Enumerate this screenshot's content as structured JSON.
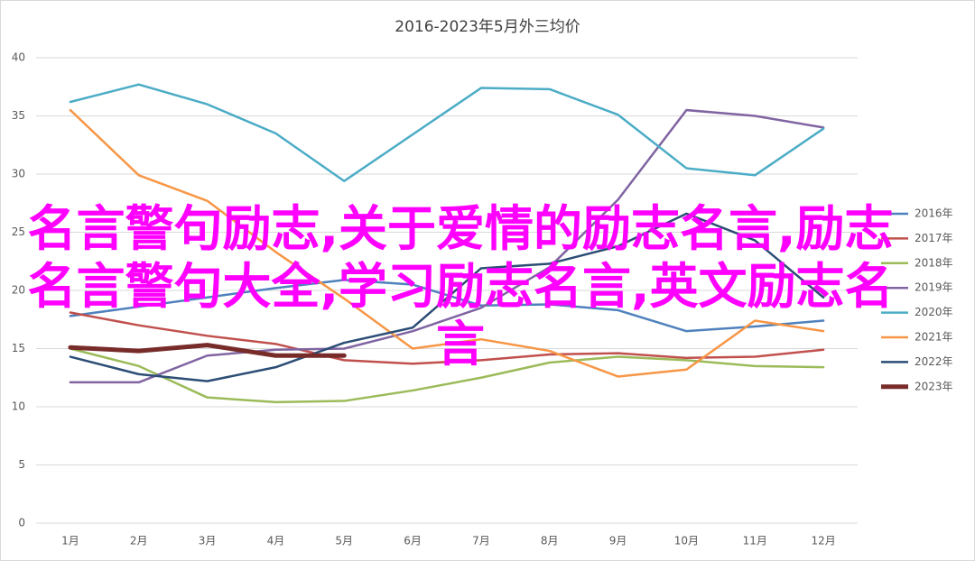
{
  "chart_data": {
    "type": "line",
    "title": "2016-2023年5月外三均价",
    "categories": [
      "1月",
      "2月",
      "3月",
      "4月",
      "5月",
      "6月",
      "7月",
      "8月",
      "9月",
      "10月",
      "11月",
      "12月"
    ],
    "series": [
      {
        "name": "2016年",
        "color": "#4f81bd",
        "values": [
          17.8,
          18.6,
          19.4,
          20.2,
          20.9,
          20.5,
          18.7,
          18.8,
          18.3,
          16.5,
          16.9,
          17.4
        ]
      },
      {
        "name": "2017年",
        "color": "#c0504d",
        "values": [
          18.1,
          17.0,
          16.1,
          15.4,
          14.0,
          13.7,
          14.0,
          14.5,
          14.6,
          14.2,
          14.3,
          14.9
        ]
      },
      {
        "name": "2018年",
        "color": "#9bbb59",
        "values": [
          15.0,
          13.5,
          10.8,
          10.4,
          10.5,
          11.4,
          12.5,
          13.8,
          14.3,
          14.0,
          13.5,
          13.4
        ]
      },
      {
        "name": "2019年",
        "color": "#8064a2",
        "values": [
          12.1,
          12.1,
          14.4,
          14.9,
          15.0,
          16.5,
          18.5,
          22.0,
          27.8,
          35.5,
          35.0,
          34.0
        ]
      },
      {
        "name": "2020年",
        "color": "#4bacc6",
        "values": [
          36.2,
          37.7,
          36.0,
          33.5,
          29.4,
          33.4,
          37.4,
          37.3,
          35.1,
          30.5,
          29.9,
          33.9
        ]
      },
      {
        "name": "2021年",
        "color": "#f79646",
        "values": [
          35.5,
          29.9,
          27.7,
          23.3,
          19.3,
          15.0,
          15.8,
          14.8,
          12.6,
          13.2,
          17.4,
          16.5
        ]
      },
      {
        "name": "2022年",
        "color": "#2c4d75",
        "values": [
          14.3,
          12.8,
          12.2,
          13.4,
          15.5,
          16.8,
          21.9,
          22.3,
          23.8,
          26.6,
          24.3,
          19.4
        ]
      },
      {
        "name": "2023年",
        "color": "#772c2a",
        "values": [
          15.1,
          14.8,
          15.3,
          14.4,
          14.4,
          null,
          null,
          null,
          null,
          null,
          null,
          null
        ]
      }
    ],
    "ylim": [
      0,
      40
    ],
    "yticks": [
      0,
      5,
      10,
      15,
      20,
      25,
      30,
      35,
      40
    ],
    "grid": true,
    "legend": "right",
    "overlay": "名言警句励志,关于爱情的励志名言,励志名言警句大全,学习励志名言,英文励志名言"
  }
}
